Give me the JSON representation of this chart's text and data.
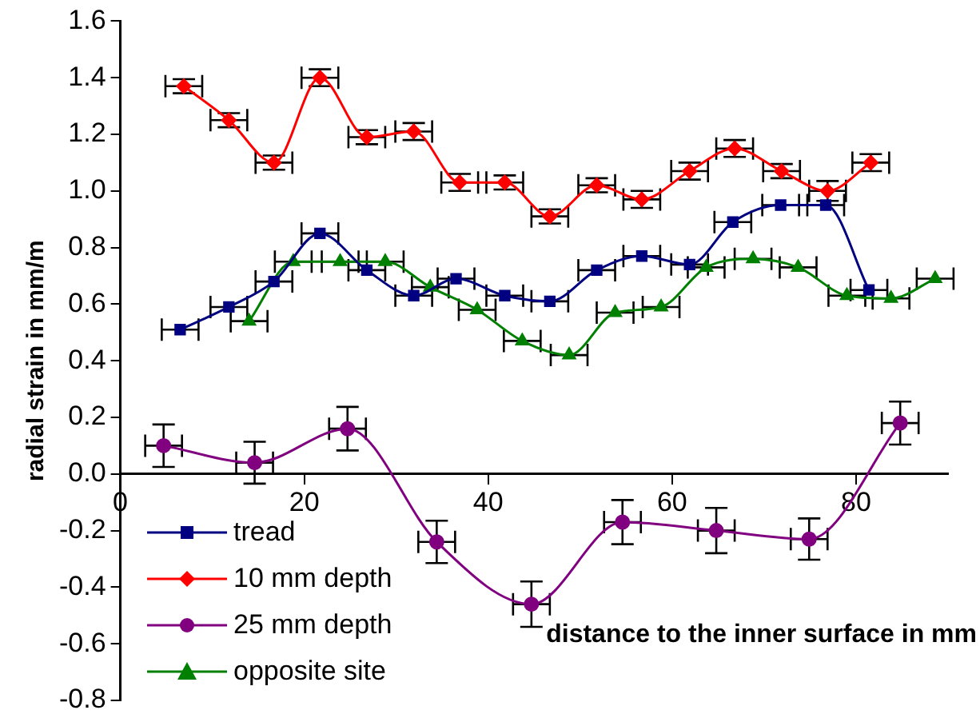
{
  "chart_data": {
    "type": "line",
    "ylabel": "radial strain in mm/m",
    "xlabel": "distance to the inner surface in mm",
    "xlim": [
      0,
      90
    ],
    "xticks": [
      0,
      20,
      40,
      60,
      80
    ],
    "ylim": [
      -0.8,
      1.6
    ],
    "yticks": [
      -0.8,
      -0.6,
      -0.4,
      -0.2,
      {
        "value": 0,
        "label": "0.0"
      },
      0.2,
      0.4,
      0.6,
      0.8,
      {
        "value": 1,
        "label": "1.0"
      },
      1.2,
      1.4,
      1.6
    ],
    "grid": false,
    "legend": "bottom left",
    "series": [
      {
        "name": "tread",
        "color": "#000080",
        "marker": "square",
        "x": [
          6.5,
          11.8,
          16.7,
          21.7,
          26.8,
          31.9,
          36.5,
          41.8,
          46.7,
          51.8,
          56.7,
          61.9,
          66.6,
          71.8,
          76.7,
          81.4
        ],
        "values": [
          0.51,
          0.59,
          0.68,
          0.85,
          0.72,
          0.63,
          0.69,
          0.63,
          0.61,
          0.72,
          0.77,
          0.74,
          0.89,
          0.95,
          0.95,
          0.65
        ],
        "xerrors": [
          2,
          2,
          2,
          2,
          2,
          2,
          2,
          2,
          2,
          2,
          2,
          2,
          2,
          2,
          2,
          2
        ]
      },
      {
        "name": "10 mm depth",
        "color": "#ff0000",
        "marker": "diamond",
        "x": [
          6.9,
          11.8,
          16.7,
          21.7,
          26.8,
          31.9,
          36.9,
          41.8,
          46.7,
          51.8,
          56.7,
          61.9,
          66.8,
          71.9,
          76.9,
          81.6
        ],
        "values": [
          1.37,
          1.25,
          1.1,
          1.4,
          1.19,
          1.21,
          1.03,
          1.03,
          0.91,
          1.02,
          0.97,
          1.07,
          1.15,
          1.07,
          1.0,
          1.1
        ],
        "errors": [
          0.025,
          0.025,
          0.025,
          0.03,
          0.025,
          0.03,
          0.03,
          0.025,
          0.025,
          0.025,
          0.03,
          0.03,
          0.03,
          0.025,
          0.035,
          0.03
        ],
        "xerrors": [
          2,
          2,
          2,
          2,
          2,
          2,
          2,
          2,
          2,
          2,
          2,
          2,
          2,
          2,
          2,
          2
        ]
      },
      {
        "name": "25 mm depth",
        "color": "#800080",
        "marker": "circle",
        "x": [
          4.7,
          14.6,
          24.7,
          34.4,
          44.7,
          54.6,
          64.8,
          74.9,
          84.8
        ],
        "values": [
          0.1,
          0.04,
          0.16,
          -0.24,
          -0.46,
          -0.17,
          -0.2,
          -0.23,
          0.18
        ],
        "errors": [
          0.075,
          0.074,
          0.077,
          0.075,
          0.08,
          0.078,
          0.08,
          0.073,
          0.076
        ],
        "xerrors": [
          2,
          2,
          2,
          2,
          2,
          2,
          2,
          2,
          2
        ]
      },
      {
        "name": "opposite site",
        "color": "#008000",
        "marker": "triangle",
        "x": [
          14,
          18.8,
          23.9,
          28.8,
          33.7,
          38.8,
          43.7,
          48.8,
          53.8,
          58.8,
          63.7,
          68.8,
          73.7,
          79,
          83.8,
          88.6
        ],
        "values": [
          0.54,
          0.75,
          0.75,
          0.75,
          0.66,
          0.58,
          0.47,
          0.42,
          0.57,
          0.59,
          0.73,
          0.76,
          0.73,
          0.63,
          0.62,
          0.69
        ],
        "xerrors": [
          2,
          2,
          2,
          2,
          2,
          2,
          2,
          2,
          2,
          2,
          2,
          2,
          2,
          2,
          2,
          2
        ]
      }
    ]
  }
}
